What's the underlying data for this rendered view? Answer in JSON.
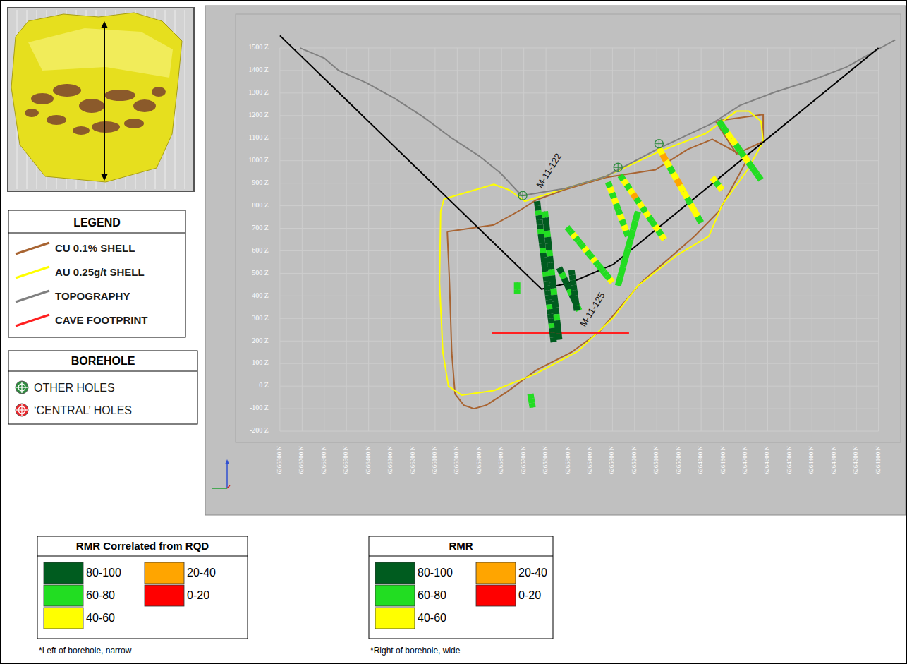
{
  "chart_data": {
    "type": "line",
    "legend": "left",
    "legend_title": "LEGEND",
    "grid": true,
    "xlim": [
      6267000,
      6264000
    ],
    "xticks": [
      {
        "value": 6266800,
        "label": "6266800 N"
      },
      {
        "value": 6266700,
        "label": "6266700 N"
      },
      {
        "value": 6266600,
        "label": "6266600 N"
      },
      {
        "value": 6266500,
        "label": "6266500 N"
      },
      {
        "value": 6266400,
        "label": "6266400 N"
      },
      {
        "value": 6266300,
        "label": "6266300 N"
      },
      {
        "value": 6266200,
        "label": "6266200 N"
      },
      {
        "value": 6266100,
        "label": "6266100 N"
      },
      {
        "value": 6266000,
        "label": "6266000 N"
      },
      {
        "value": 6265900,
        "label": "6265900 N"
      },
      {
        "value": 6265800,
        "label": "6265800 N"
      },
      {
        "value": 6265700,
        "label": "6265700 N"
      },
      {
        "value": 6265600,
        "label": "6265600 N"
      },
      {
        "value": 6265500,
        "label": "6265500 N"
      },
      {
        "value": 6265400,
        "label": "6265400 N"
      },
      {
        "value": 6265300,
        "label": "6265300 N"
      },
      {
        "value": 6265200,
        "label": "6265200 N"
      },
      {
        "value": 6265100,
        "label": "6265100 N"
      },
      {
        "value": 6265000,
        "label": "6265000 N"
      },
      {
        "value": 6264900,
        "label": "6264900 N"
      },
      {
        "value": 6264800,
        "label": "6264800 N"
      },
      {
        "value": 6264700,
        "label": "6264700 N"
      },
      {
        "value": 6264600,
        "label": "6264600 N"
      },
      {
        "value": 6264500,
        "label": "6264500 N"
      },
      {
        "value": 6264400,
        "label": "6264400 N"
      },
      {
        "value": 6264300,
        "label": "6264300 N"
      },
      {
        "value": 6264200,
        "label": "6264200 N"
      },
      {
        "value": 6264100,
        "label": "6264100 N"
      }
    ],
    "ylim": [
      -250,
      1650
    ],
    "yticks": [
      {
        "value": 1500,
        "label": "1500 Z"
      },
      {
        "value": 1400,
        "label": "1400 Z"
      },
      {
        "value": 1300,
        "label": "1300 Z"
      },
      {
        "value": 1200,
        "label": "1200 Z"
      },
      {
        "value": 1100,
        "label": "1100 Z"
      },
      {
        "value": 1000,
        "label": "1000 Z"
      },
      {
        "value": 900,
        "label": "900 Z"
      },
      {
        "value": 800,
        "label": "800 Z"
      },
      {
        "value": 700,
        "label": "700 Z"
      },
      {
        "value": 600,
        "label": "600 Z"
      },
      {
        "value": 500,
        "label": "500 Z"
      },
      {
        "value": 400,
        "label": "400 Z"
      },
      {
        "value": 300,
        "label": "300 Z"
      },
      {
        "value": 200,
        "label": "200 Z"
      },
      {
        "value": 100,
        "label": "100 Z"
      },
      {
        "value": 0,
        "label": "0 Z"
      },
      {
        "value": -100,
        "label": "-100 Z"
      },
      {
        "value": -200,
        "label": "-200 Z"
      }
    ],
    "series": [
      {
        "name": "CU 0.1% SHELL",
        "color": "#a86432",
        "x": [
          6266045,
          6265835,
          6265725,
          6265645,
          6265520,
          6265330,
          6265105,
          6264960,
          6264850,
          6264690,
          6264725,
          6264820,
          6264930,
          6265040,
          6265170,
          6265265,
          6265360,
          6265485,
          6265645,
          6265775,
          6265870,
          6265925,
          6265970,
          6266010,
          6266025,
          6266035,
          6266045,
          null,
          6264835,
          6264620,
          6264620,
          6264740,
          6264835
        ],
        "values": [
          685,
          715,
          775,
          825,
          870,
          925,
          960,
          1050,
          1095,
          1010,
          945,
          775,
          665,
          570,
          460,
          350,
          240,
          150,
          70,
          -25,
          -85,
          -100,
          -85,
          -35,
          150,
          460,
          685,
          null,
          1175,
          1205,
          1085,
          1030,
          1175
        ]
      },
      {
        "name": "AU 0.25g/t SHELL",
        "color": "#ffff00",
        "x": [
          6266060,
          6265835,
          6265765,
          6265695,
          6265520,
          6265330,
          6265090,
          6264880,
          6264740,
          6264685,
          6264630,
          6264620,
          6264690,
          6264805,
          6264865,
          6265010,
          6265185,
          6265295,
          6265455,
          6265645,
          6265835,
          6265980,
          6266040,
          6266065,
          6266080,
          6266075,
          6266060
        ],
        "values": [
          830,
          895,
          870,
          820,
          875,
          930,
          1040,
          1120,
          1220,
          1220,
          1175,
          1085,
          960,
          805,
          665,
          580,
          445,
          305,
          155,
          55,
          -20,
          -40,
          0,
          150,
          460,
          775,
          830
        ]
      },
      {
        "name": "TOPOGRAPHY",
        "color": "#808080",
        "x": [
          6266710,
          6266600,
          6266535,
          6266410,
          6266280,
          6266155,
          6266025,
          6265900,
          6265805,
          6265710,
          6265520,
          6265330,
          6265090,
          6264850,
          6264725,
          6264565,
          6264405,
          6264245,
          6264100,
          6264025
        ],
        "values": [
          1500,
          1455,
          1400,
          1345,
          1275,
          1195,
          1100,
          1020,
          945,
          845,
          875,
          930,
          1055,
          1165,
          1245,
          1305,
          1355,
          1415,
          1495,
          1535
        ]
      },
      {
        "name": "CAVE FOOTPRINT",
        "color": "#ff2020",
        "x": [
          6265845,
          6265225
        ],
        "values": [
          235,
          235
        ]
      },
      {
        "color": "#000000",
        "x": [
          6266800,
          6265620,
          6265485,
          6265295,
          6264100
        ],
        "values": [
          1555,
          430,
          460,
          540,
          1500
        ]
      }
    ],
    "holes": [
      {
        "name": "M-11-122",
        "x": [
          6265640,
          6265565
        ],
        "z": [
          820,
          195
        ],
        "rmr": [
          85,
          90,
          72,
          88,
          92,
          85,
          65,
          88,
          90,
          82,
          70,
          86,
          91,
          84,
          88,
          75,
          90,
          86,
          83,
          88,
          92,
          80,
          68,
          85,
          90,
          87,
          78,
          86,
          84,
          90
        ]
      },
      {
        "x": [
          6265605,
          6265540
        ],
        "z": [
          775,
          205
        ],
        "rmr": [
          70,
          85,
          88,
          65,
          82,
          90,
          72,
          86,
          84,
          68,
          88,
          90,
          76,
          85,
          82,
          88,
          70,
          86,
          90,
          84
        ]
      },
      {
        "name": "M-11-125",
        "x": [
          6265540,
          6265450
        ],
        "z": [
          525,
          335
        ],
        "rmr": [
          85,
          72,
          88,
          90,
          68,
          84,
          86,
          75
        ]
      },
      {
        "x": [
          6265485,
          6265460
        ],
        "z": [
          515,
          335
        ],
        "rmr": [
          88,
          92,
          85,
          90,
          86,
          89,
          84,
          91
        ]
      },
      {
        "x": [
          6265730,
          6265730
        ],
        "z": [
          460,
          410
        ],
        "rmr": [
          65,
          72,
          68
        ]
      },
      {
        "x": [
          6265670,
          6265660
        ],
        "z": [
          -35,
          -95
        ],
        "rmr": [
          70,
          66,
          72
        ]
      },
      {
        "x": [
          6265505,
          6265300
        ],
        "z": [
          705,
          460
        ],
        "rmr": [
          72,
          65,
          55,
          68,
          75,
          62,
          58,
          70,
          66,
          52,
          64,
          71,
          60,
          68,
          74,
          56
        ]
      },
      {
        "x": [
          6265320,
          6265230
        ],
        "z": [
          905,
          665
        ],
        "rmr": [
          65,
          55,
          72,
          48,
          60,
          68,
          52,
          66,
          58,
          70
        ]
      },
      {
        "x": [
          6265265,
          6265065
        ],
        "z": [
          935,
          650
        ],
        "rmr": [
          62,
          48,
          70,
          55,
          38,
          66,
          58,
          72,
          45,
          60,
          68,
          52,
          64,
          57
        ]
      },
      {
        "x": [
          6265185,
          6265275
        ],
        "z": [
          775,
          445
        ],
        "rmr": [
          70,
          75,
          66,
          72,
          78,
          68,
          74,
          70
        ]
      },
      {
        "x": [
          6265090,
          6264900
        ],
        "z": [
          1055,
          725
        ],
        "rmr": [
          45,
          38,
          55,
          62,
          48,
          35,
          58,
          50,
          66,
          42,
          52,
          60
        ]
      },
      {
        "x": [
          6264820,
          6264630
        ],
        "z": [
          1175,
          915
        ],
        "rmr": [
          62,
          70,
          45,
          58,
          66,
          72,
          55,
          68,
          60,
          74
        ]
      },
      {
        "x": [
          6264850,
          6264805
        ],
        "z": [
          925,
          870
        ],
        "rmr": [
          50,
          62,
          45
        ]
      }
    ],
    "collars": {
      "x": [
        6265705,
        6265275,
        6265090
      ],
      "z": [
        845,
        970,
        1075
      ]
    },
    "rmr_classes": [
      {
        "min": 80,
        "max": 100,
        "label": "80-100",
        "color": "#005c1f"
      },
      {
        "min": 60,
        "max": 80,
        "label": "60-80",
        "color": "#22dd22"
      },
      {
        "min": 40,
        "max": 60,
        "label": "40-60",
        "color": "#ffff00"
      },
      {
        "min": 20,
        "max": 40,
        "label": "20-40",
        "color": "#ffa500"
      },
      {
        "min": 0,
        "max": 20,
        "label": "0-20",
        "color": "#ff0000"
      }
    ]
  },
  "borehole_legend": {
    "title": "BOREHOLE",
    "items": [
      {
        "label": "OTHER HOLES",
        "color": "#2e8b3e"
      },
      {
        "label": "‘CENTRAL’ HOLES",
        "color": "#e8262b"
      }
    ]
  },
  "rmr_keys": [
    {
      "title": "RMR Correlated from RQD",
      "note": "*Left of borehole, narrow"
    },
    {
      "title": "RMR",
      "note": "*Right of borehole, wide"
    }
  ]
}
